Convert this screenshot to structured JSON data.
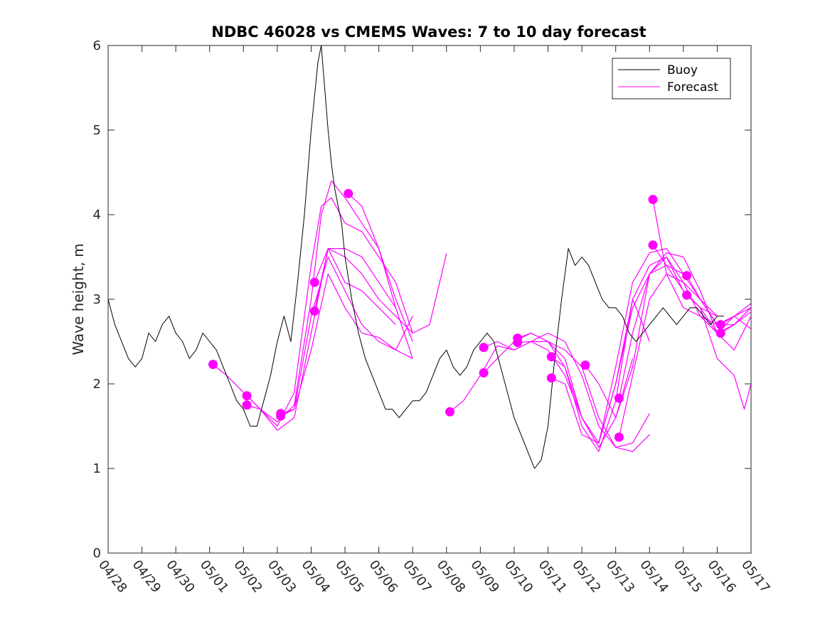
{
  "chart_data": {
    "type": "line",
    "title": "NDBC 46028 vs CMEMS Waves: 7 to 10 day forecast",
    "xlabel": "",
    "ylabel": "Wave height, m",
    "xlim": [
      0,
      19
    ],
    "ylim": [
      0,
      6
    ],
    "yticks": [
      0,
      1,
      2,
      3,
      4,
      5,
      6
    ],
    "xtick_positions": [
      0,
      1,
      2,
      3,
      4,
      5,
      6,
      7,
      8,
      9,
      10,
      11,
      12,
      13,
      14,
      15,
      16,
      17,
      18,
      19
    ],
    "xtick_labels": [
      "04/28",
      "04/29",
      "04/30",
      "05/01",
      "05/02",
      "05/03",
      "05/04",
      "05/05",
      "05/06",
      "05/07",
      "05/08",
      "05/09",
      "05/10",
      "05/11",
      "05/12",
      "05/13",
      "05/14",
      "05/15",
      "05/16",
      "05/17"
    ],
    "grid": false,
    "legend_position": "top-right",
    "series": [
      {
        "name": "Buoy",
        "color": "#000000",
        "x": [
          0.0,
          0.2,
          0.4,
          0.6,
          0.8,
          1.0,
          1.2,
          1.4,
          1.6,
          1.8,
          2.0,
          2.2,
          2.4,
          2.6,
          2.8,
          3.0,
          3.2,
          3.4,
          3.6,
          3.8,
          4.0,
          4.2,
          4.4,
          4.6,
          4.8,
          5.0,
          5.2,
          5.4,
          5.6,
          5.8,
          6.0,
          6.1,
          6.2,
          6.3,
          6.4,
          6.5,
          6.6,
          6.7,
          6.8,
          6.9,
          7.0,
          7.2,
          7.4,
          7.6,
          7.8,
          8.0,
          8.2,
          8.4,
          8.6,
          8.8,
          9.0,
          9.2,
          9.4,
          9.6,
          9.8,
          10.0,
          10.2,
          10.4,
          10.6,
          10.8,
          11.0,
          11.2,
          11.4,
          11.6,
          11.8,
          12.0,
          12.2,
          12.4,
          12.6,
          12.8,
          13.0,
          13.2,
          13.4,
          13.6,
          13.8,
          14.0,
          14.2,
          14.4,
          14.6,
          14.8,
          15.0,
          15.2,
          15.4,
          15.6,
          15.8,
          16.0,
          16.2,
          16.4,
          16.6,
          16.8,
          17.0,
          17.2,
          17.4,
          17.6,
          17.8,
          18.0,
          18.2
        ],
        "y": [
          3.0,
          2.7,
          2.5,
          2.3,
          2.2,
          2.3,
          2.6,
          2.5,
          2.7,
          2.8,
          2.6,
          2.5,
          2.3,
          2.4,
          2.6,
          2.5,
          2.4,
          2.2,
          2.0,
          1.8,
          1.7,
          1.5,
          1.5,
          1.8,
          2.1,
          2.5,
          2.8,
          2.5,
          3.2,
          4.0,
          5.0,
          5.4,
          5.8,
          6.0,
          5.5,
          5.0,
          4.6,
          4.3,
          4.1,
          3.9,
          3.5,
          3.0,
          2.6,
          2.3,
          2.1,
          1.9,
          1.7,
          1.7,
          1.6,
          1.7,
          1.8,
          1.8,
          1.9,
          2.1,
          2.3,
          2.4,
          2.2,
          2.1,
          2.2,
          2.4,
          2.5,
          2.6,
          2.5,
          2.2,
          1.9,
          1.6,
          1.4,
          1.2,
          1.0,
          1.1,
          1.5,
          2.3,
          3.0,
          3.6,
          3.4,
          3.5,
          3.4,
          3.2,
          3.0,
          2.9,
          2.9,
          2.8,
          2.6,
          2.5,
          2.6,
          2.7,
          2.8,
          2.9,
          2.8,
          2.7,
          2.8,
          2.9,
          2.9,
          2.8,
          2.7,
          2.8,
          2.8
        ]
      },
      {
        "name": "Forecast",
        "color": "#ff00ff",
        "runs": [
          {
            "x": [
              3.1,
              3.5,
              4.0,
              4.5,
              5.0,
              5.5,
              6.0,
              6.3,
              6.6,
              7.0,
              7.5,
              8.0,
              8.5,
              9.0
            ],
            "y": [
              2.23,
              2.1,
              1.9,
              1.7,
              1.55,
              1.75,
              3.0,
              4.0,
              4.4,
              4.2,
              3.9,
              3.6,
              3.0,
              2.5
            ]
          },
          {
            "x": [
              4.1,
              4.5,
              5.0,
              5.5,
              6.0,
              6.3,
              6.6,
              7.0,
              7.5,
              8.0,
              8.5,
              9.0,
              9.5,
              10.0
            ],
            "y": [
              1.86,
              1.7,
              1.5,
              1.9,
              3.4,
              4.1,
              4.2,
              3.9,
              3.8,
              3.5,
              3.2,
              2.6,
              2.7,
              3.54
            ]
          },
          {
            "x": [
              4.1,
              4.5,
              5.0,
              5.5,
              6.0,
              6.5,
              7.0,
              7.5,
              8.0,
              8.5
            ],
            "y": [
              1.75,
              1.7,
              1.45,
              1.6,
              2.6,
              3.6,
              3.2,
              3.1,
              2.9,
              2.7
            ]
          },
          {
            "x": [
              5.1,
              5.5,
              6.0,
              6.5,
              7.0,
              7.5,
              8.0,
              8.5,
              9.0
            ],
            "y": [
              1.65,
              1.7,
              2.8,
              3.5,
              3.1,
              2.7,
              2.5,
              2.4,
              2.8
            ]
          },
          {
            "x": [
              5.1,
              5.5,
              6.0,
              6.5,
              7.0,
              7.5,
              8.0,
              8.5,
              9.0
            ],
            "y": [
              1.62,
              1.7,
              2.4,
              3.3,
              2.9,
              2.6,
              2.55,
              2.4,
              2.3
            ]
          },
          {
            "x": [
              6.1,
              6.5,
              7.0,
              7.5,
              8.0,
              8.5,
              9.0
            ],
            "y": [
              3.2,
              3.6,
              3.5,
              3.3,
              3.0,
              2.8,
              2.6
            ]
          },
          {
            "x": [
              6.1,
              6.5,
              7.0,
              7.5,
              8.0,
              8.5
            ],
            "y": [
              2.86,
              3.6,
              3.6,
              3.5,
              3.2,
              2.9
            ]
          },
          {
            "x": [
              7.1,
              7.5,
              8.0,
              8.5,
              9.0
            ],
            "y": [
              4.25,
              4.1,
              3.6,
              2.9,
              2.3
            ]
          },
          {
            "x": [
              10.1,
              10.5,
              11.0,
              11.5,
              12.0,
              12.5,
              13.0,
              13.5,
              14.0,
              14.5,
              15.0,
              15.5,
              16.0
            ],
            "y": [
              1.67,
              1.8,
              2.1,
              2.45,
              2.4,
              2.5,
              2.5,
              2.4,
              2.2,
              1.6,
              1.25,
              1.2,
              1.4
            ]
          },
          {
            "x": [
              11.1,
              11.5,
              12.0,
              12.5,
              13.0,
              13.5,
              14.0,
              14.5,
              15.0,
              15.5,
              16.0
            ],
            "y": [
              2.43,
              2.5,
              2.4,
              2.5,
              2.6,
              2.5,
              2.1,
              1.5,
              1.25,
              1.3,
              1.65
            ]
          },
          {
            "x": [
              11.1,
              11.5,
              12.0,
              12.5,
              13.0,
              13.5,
              14.0,
              14.5,
              15.0,
              15.5
            ],
            "y": [
              2.13,
              2.3,
              2.5,
              2.6,
              2.5,
              2.3,
              1.6,
              1.25,
              1.6,
              2.3
            ]
          },
          {
            "x": [
              12.1,
              12.5,
              13.0,
              13.5,
              14.0,
              14.5,
              15.0,
              15.5,
              16.0
            ],
            "y": [
              2.54,
              2.6,
              2.5,
              2.2,
              1.5,
              1.2,
              1.8,
              3.0,
              2.5
            ]
          },
          {
            "x": [
              12.1,
              12.5,
              13.0,
              13.5,
              14.0,
              14.5,
              15.0,
              15.5,
              16.0,
              16.5,
              17.0
            ],
            "y": [
              2.49,
              2.5,
              2.4,
              2.1,
              1.6,
              1.3,
              2.0,
              2.9,
              3.3,
              3.4,
              3.3
            ]
          },
          {
            "x": [
              13.1,
              13.5,
              14.0,
              14.5,
              15.0,
              15.5,
              16.0,
              16.5,
              17.0,
              17.5,
              18.0
            ],
            "y": [
              2.32,
              2.2,
              1.6,
              1.3,
              2.0,
              3.0,
              3.4,
              3.5,
              3.2,
              2.8,
              2.7
            ]
          },
          {
            "x": [
              13.1,
              13.5,
              14.0,
              14.5,
              15.0,
              15.5,
              16.0,
              16.5,
              17.0,
              17.5,
              18.0
            ],
            "y": [
              2.07,
              2.0,
              1.4,
              1.3,
              2.2,
              3.2,
              3.55,
              3.6,
              3.3,
              3.0,
              2.8
            ]
          },
          {
            "x": [
              14.1,
              14.5,
              15.0,
              15.5,
              16.0,
              16.5,
              17.0,
              17.5,
              18.0
            ],
            "y": [
              2.22,
              2.0,
              1.6,
              2.2,
              3.3,
              3.5,
              3.1,
              2.9,
              2.8
            ]
          },
          {
            "x": [
              15.1,
              15.5,
              16.0,
              16.5,
              17.0,
              17.5,
              18.0,
              18.5,
              19.0
            ],
            "y": [
              1.83,
              2.6,
              3.3,
              3.55,
              3.5,
              3.1,
              2.6,
              2.4,
              2.8
            ]
          },
          {
            "x": [
              15.1,
              15.5,
              16.0,
              16.5,
              17.0,
              17.5,
              18.0,
              18.5,
              19.0
            ],
            "y": [
              1.37,
              2.1,
              3.0,
              3.3,
              3.2,
              3.0,
              2.7,
              2.8,
              2.9
            ]
          },
          {
            "x": [
              16.1,
              16.5,
              17.0,
              17.5,
              18.0,
              18.5,
              19.0
            ],
            "y": [
              4.18,
              3.3,
              2.9,
              2.8,
              2.6,
              2.7,
              2.9
            ]
          },
          {
            "x": [
              16.1,
              16.5,
              17.0,
              17.5,
              18.0,
              18.5,
              19.0
            ],
            "y": [
              3.64,
              3.4,
              3.1,
              2.9,
              2.6,
              2.8,
              2.65
            ]
          },
          {
            "x": [
              17.1,
              17.5,
              18.0,
              18.5,
              19.0
            ],
            "y": [
              3.28,
              3.0,
              2.7,
              2.7,
              2.9
            ]
          },
          {
            "x": [
              17.1,
              17.5,
              18.0,
              18.5,
              18.8,
              19.0
            ],
            "y": [
              3.05,
              2.9,
              2.3,
              2.1,
              1.7,
              2.0
            ]
          },
          {
            "x": [
              18.1,
              18.5,
              19.0
            ],
            "y": [
              2.7,
              2.8,
              2.95
            ]
          },
          {
            "x": [
              18.1,
              18.5,
              19.0
            ],
            "y": [
              2.6,
              2.7,
              2.85
            ]
          }
        ]
      }
    ],
    "markers": {
      "color": "#ff00ff",
      "x": [
        3.1,
        4.1,
        4.1,
        5.1,
        5.1,
        6.1,
        6.1,
        7.1,
        10.1,
        11.1,
        11.1,
        12.1,
        12.1,
        13.1,
        13.1,
        14.1,
        15.1,
        15.1,
        16.1,
        16.1,
        17.1,
        17.1,
        18.1,
        18.1
      ],
      "y": [
        2.23,
        1.86,
        1.75,
        1.65,
        1.62,
        3.2,
        2.86,
        4.25,
        1.67,
        2.43,
        2.13,
        2.54,
        2.49,
        2.32,
        2.07,
        2.22,
        1.83,
        1.37,
        4.18,
        3.64,
        3.28,
        3.05,
        2.7,
        2.6
      ]
    }
  }
}
